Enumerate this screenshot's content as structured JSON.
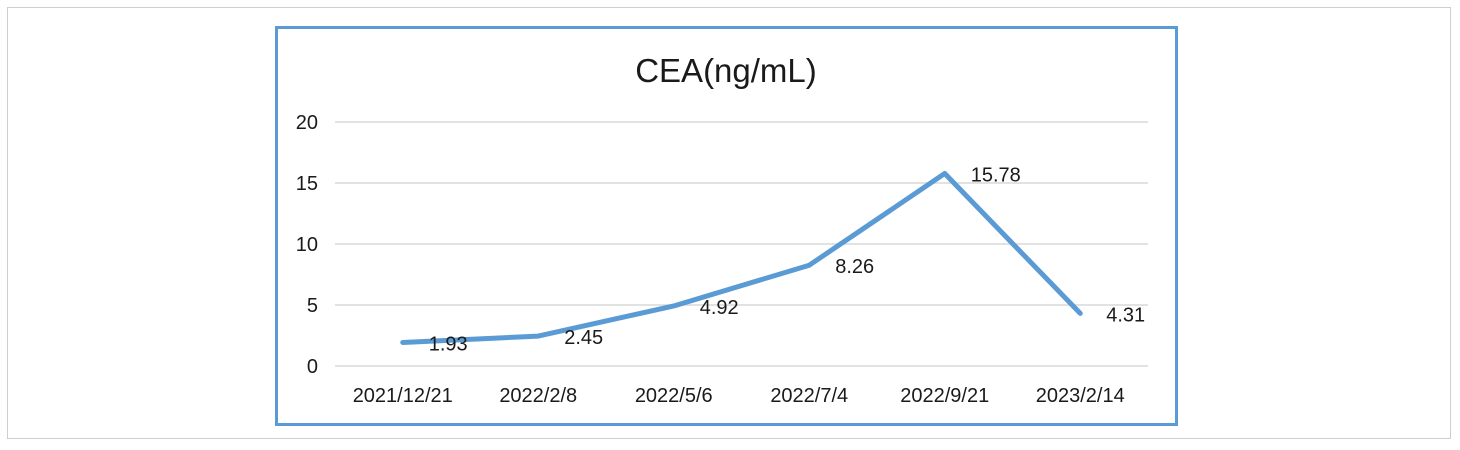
{
  "chart_data": {
    "type": "line",
    "title": "CEA(ng/mL)",
    "xlabel": "",
    "ylabel": "",
    "categories": [
      "2021/12/21",
      "2022/2/8",
      "2022/5/6",
      "2022/7/4",
      "2022/9/21",
      "2023/2/14"
    ],
    "series": [
      {
        "values": [
          1.93,
          2.45,
          4.92,
          8.26,
          15.78,
          4.31
        ]
      }
    ],
    "data_labels": [
      "1.93",
      "2.45",
      "4.92",
      "8.26",
      "15.78",
      "4.31"
    ],
    "ylim": [
      0,
      20
    ],
    "yticks": [
      "0",
      "5",
      "10",
      "15",
      "20"
    ],
    "grid": true,
    "legend": "none",
    "line_color": "#5b9bd5",
    "grid_color": "#d9d9d9",
    "frame_color": "#5b9bd5"
  }
}
